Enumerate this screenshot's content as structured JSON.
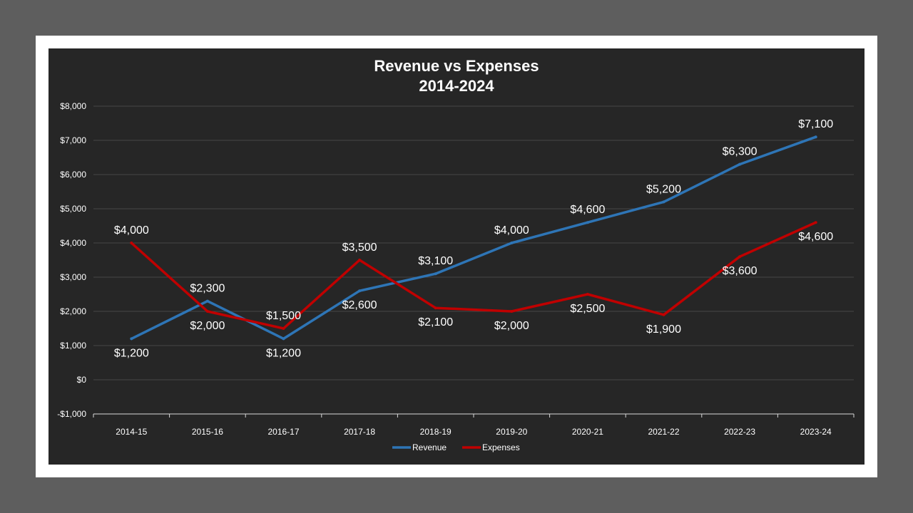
{
  "chart_data": {
    "type": "line",
    "title": "Revenue vs Expenses",
    "subtitle": "2014-2024",
    "xlabel": "",
    "ylabel": "",
    "categories": [
      "2014-15",
      "2015-16",
      "2016-17",
      "2017-18",
      "2018-19",
      "2019-20",
      "2020-21",
      "2021-22",
      "2022-23",
      "2023-24"
    ],
    "ylim": [
      -1000,
      8000
    ],
    "yticks": [
      -1000,
      0,
      1000,
      2000,
      3000,
      4000,
      5000,
      6000,
      7000,
      8000
    ],
    "ytick_labels": [
      "-$1,000",
      "$0",
      "$1,000",
      "$2,000",
      "$3,000",
      "$4,000",
      "$5,000",
      "$6,000",
      "$7,000",
      "$8,000"
    ],
    "grid": true,
    "legend_position": "bottom",
    "series": [
      {
        "name": "Revenue",
        "color": "#2e75b6",
        "values": [
          1200,
          2300,
          1200,
          2600,
          3100,
          4000,
          4600,
          5200,
          6300,
          7100
        ],
        "labels": [
          "$1,200",
          "$2,300",
          "$1,200",
          "$2,600",
          "$3,100",
          "$4,000",
          "$4,600",
          "$5,200",
          "$6,300",
          "$7,100"
        ],
        "label_side": [
          "below",
          "above",
          "below",
          "below",
          "above",
          "above",
          "above",
          "above",
          "above",
          "above"
        ]
      },
      {
        "name": "Expenses",
        "color": "#c00000",
        "values": [
          4000,
          2000,
          1500,
          3500,
          2100,
          2000,
          2500,
          1900,
          3600,
          4600
        ],
        "labels": [
          "$4,000",
          "$2,000",
          "$1,500",
          "$3,500",
          "$2,100",
          "$2,000",
          "$2,500",
          "$1,900",
          "$3,600",
          "$4,600"
        ],
        "label_side": [
          "above",
          "below",
          "above",
          "above",
          "below",
          "below",
          "below",
          "below",
          "below",
          "below"
        ]
      }
    ]
  }
}
